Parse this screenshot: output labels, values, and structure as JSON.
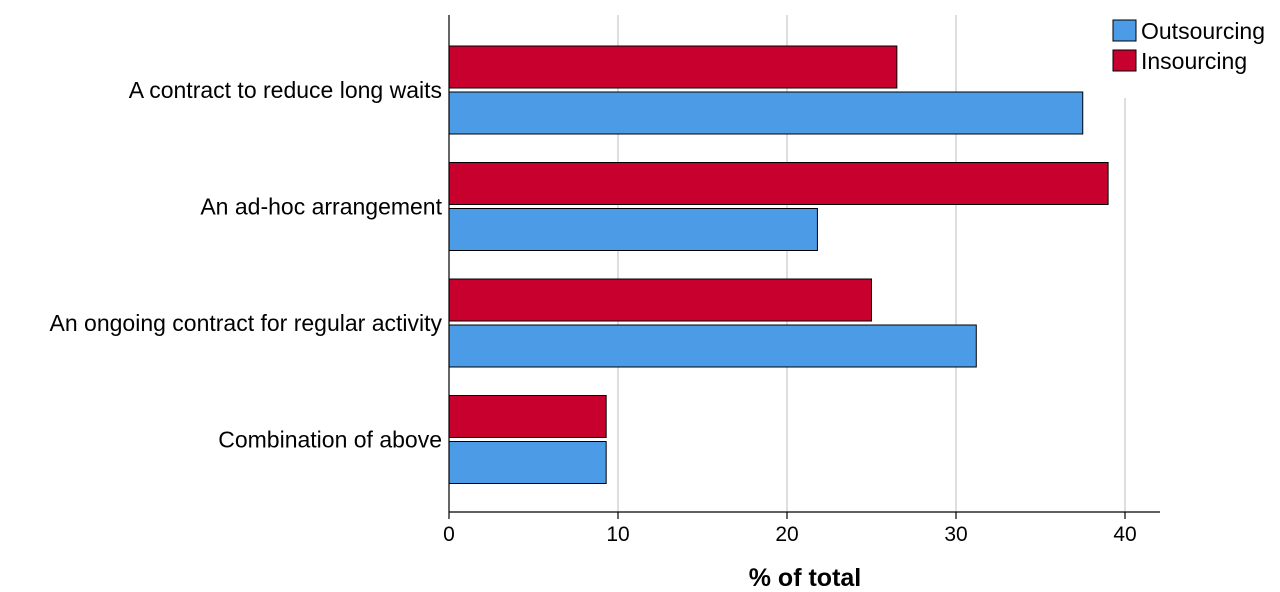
{
  "chart_data": {
    "type": "bar",
    "orientation": "horizontal",
    "title": "",
    "xlabel": "% of total",
    "ylabel": "",
    "xlim": [
      0,
      42
    ],
    "xticks": [
      0,
      10,
      20,
      30,
      40
    ],
    "grid": "vertical",
    "legend_position": "top-right",
    "categories": [
      "A contract to reduce long waits",
      "An ad-hoc arrangement",
      "An ongoing contract for regular activity",
      "Combination of above"
    ],
    "series": [
      {
        "name": "Outsourcing",
        "color": "#4C9BE6",
        "values": [
          37.5,
          21.8,
          31.2,
          9.3
        ]
      },
      {
        "name": "Insourcing",
        "color": "#C8002E",
        "values": [
          26.5,
          39.0,
          25.0,
          9.3
        ]
      }
    ]
  }
}
